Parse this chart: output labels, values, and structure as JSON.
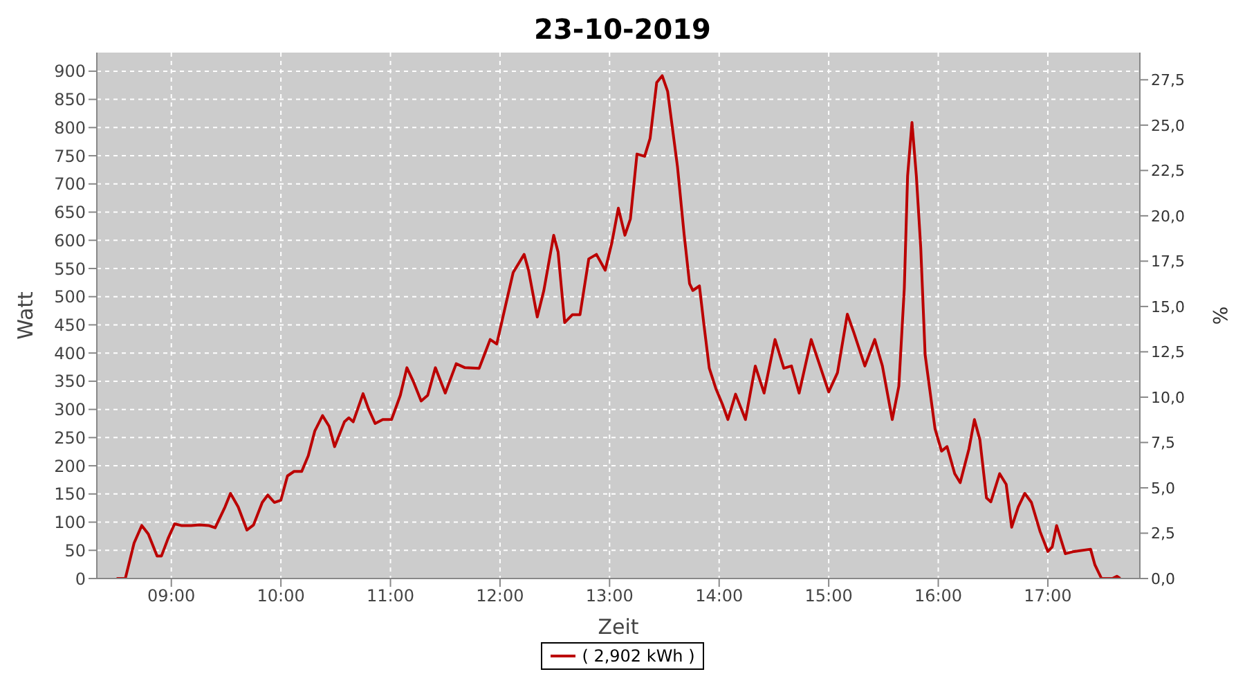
{
  "chart_data": {
    "type": "line",
    "title": "23-10-2019",
    "xlabel": "Zeit",
    "ylabel": "Watt",
    "y2label": "%",
    "xlim": [
      8.32,
      17.84
    ],
    "xticks": [
      {
        "value": 9,
        "label": "09:00"
      },
      {
        "value": 10,
        "label": "10:00"
      },
      {
        "value": 11,
        "label": "11:00"
      },
      {
        "value": 12,
        "label": "12:00"
      },
      {
        "value": 13,
        "label": "13:00"
      },
      {
        "value": 14,
        "label": "14:00"
      },
      {
        "value": 15,
        "label": "15:00"
      },
      {
        "value": 16,
        "label": "16:00"
      },
      {
        "value": 17,
        "label": "17:00"
      }
    ],
    "ylim": [
      0,
      933
    ],
    "yticks": [
      0,
      50,
      100,
      150,
      200,
      250,
      300,
      350,
      400,
      450,
      500,
      550,
      600,
      650,
      700,
      750,
      800,
      850,
      900
    ],
    "y2lim": [
      0,
      29.0
    ],
    "y2ticks": [
      {
        "value": 0,
        "label": "0,0"
      },
      {
        "value": 2.5,
        "label": "2,5"
      },
      {
        "value": 5,
        "label": "5,0"
      },
      {
        "value": 7.5,
        "label": "7,5"
      },
      {
        "value": 10,
        "label": "10,0"
      },
      {
        "value": 12.5,
        "label": "12,5"
      },
      {
        "value": 15,
        "label": "15,0"
      },
      {
        "value": 17.5,
        "label": "17,5"
      },
      {
        "value": 20,
        "label": "20,0"
      },
      {
        "value": 22.5,
        "label": "22,5"
      },
      {
        "value": 25,
        "label": "25,0"
      },
      {
        "value": 27.5,
        "label": "27,5"
      }
    ],
    "grid": true,
    "legend": "bottom",
    "marker": "none",
    "line_style": "solid",
    "x": [
      8.5,
      8.58,
      8.66,
      8.73,
      8.79,
      8.87,
      8.91,
      8.97,
      9.03,
      9.09,
      9.18,
      9.26,
      9.34,
      9.4,
      9.49,
      9.54,
      9.61,
      9.69,
      9.75,
      9.83,
      9.88,
      9.94,
      10.0,
      10.06,
      10.12,
      10.19,
      10.25,
      10.31,
      10.38,
      10.44,
      10.49,
      10.58,
      10.62,
      10.66,
      10.75,
      10.8,
      10.86,
      10.93,
      11.01,
      11.09,
      11.15,
      11.21,
      11.28,
      11.34,
      11.41,
      11.5,
      11.6,
      11.68,
      11.81,
      11.91,
      11.97,
      12.05,
      12.12,
      12.22,
      12.26,
      12.34,
      12.4,
      12.49,
      12.53,
      12.59,
      12.66,
      12.73,
      12.81,
      12.88,
      12.96,
      13.02,
      13.08,
      13.14,
      13.19,
      13.25,
      13.32,
      13.37,
      13.43,
      13.48,
      13.53,
      13.62,
      13.68,
      13.73,
      13.76,
      13.82,
      13.86,
      13.91,
      13.97,
      14.03,
      14.08,
      14.15,
      14.24,
      14.33,
      14.41,
      14.51,
      14.59,
      14.66,
      14.73,
      14.84,
      14.9,
      15.0,
      15.08,
      15.17,
      15.23,
      15.33,
      15.42,
      15.49,
      15.58,
      15.64,
      15.69,
      15.72,
      15.76,
      15.8,
      15.84,
      15.88,
      15.97,
      16.03,
      16.08,
      16.15,
      16.2,
      16.28,
      16.33,
      16.38,
      16.44,
      16.48,
      16.56,
      16.62,
      16.67,
      16.73,
      16.79,
      16.85,
      16.93,
      17.0,
      17.04,
      17.08,
      17.16,
      17.24,
      17.39,
      17.43,
      17.49,
      17.59,
      17.63,
      17.66
    ],
    "series": [
      {
        "name": "( 2,902 kWh )",
        "color": "#bb0000",
        "values": [
          0,
          0,
          63,
          94,
          79,
          40,
          40,
          71,
          97,
          94,
          94,
          95,
          94,
          90,
          127,
          151,
          127,
          86,
          95,
          135,
          148,
          135,
          139,
          182,
          190,
          190,
          218,
          262,
          289,
          270,
          234,
          278,
          285,
          278,
          328,
          301,
          275,
          282,
          282,
          325,
          374,
          349,
          315,
          325,
          374,
          329,
          381,
          374,
          373,
          424,
          416,
          484,
          543,
          575,
          547,
          464,
          511,
          609,
          579,
          454,
          468,
          468,
          567,
          575,
          547,
          595,
          657,
          609,
          638,
          753,
          749,
          781,
          880,
          892,
          864,
          730,
          611,
          523,
          511,
          519,
          452,
          373,
          337,
          309,
          282,
          327,
          282,
          377,
          329,
          424,
          373,
          377,
          329,
          424,
          389,
          331,
          365,
          469,
          436,
          377,
          424,
          377,
          282,
          341,
          515,
          714,
          809,
          714,
          587,
          397,
          266,
          226,
          234,
          186,
          170,
          230,
          282,
          246,
          143,
          136,
          186,
          167,
          91,
          127,
          151,
          135,
          83,
          48,
          56,
          94,
          44,
          48,
          52,
          24,
          0,
          0,
          4,
          0
        ]
      }
    ]
  }
}
